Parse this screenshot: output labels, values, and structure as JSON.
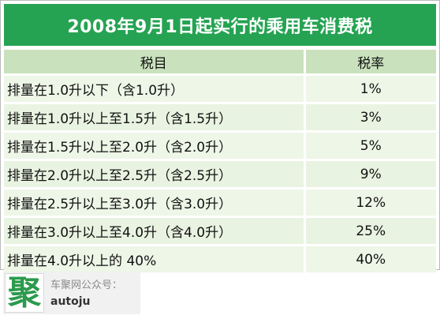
{
  "title": "2008年9月1日起实行的乘用车消费税",
  "table": {
    "headers": [
      "税目",
      "税率"
    ],
    "rows": [
      {
        "item": "排量在1.0升以下（含1.0升）",
        "rate": "1%"
      },
      {
        "item": "排量在1.0升以上至1.5升（含1.5升）",
        "rate": "3%"
      },
      {
        "item": "排量在1.5升以上至2.0升（含2.0升）",
        "rate": "5%"
      },
      {
        "item": "排量在2.0升以上至2.5升（含2.5升）",
        "rate": "9%"
      },
      {
        "item": "排量在2.5升以上至3.0升（含3.0升）",
        "rate": "12%"
      },
      {
        "item": "排量在3.0升以上至4.0升（含4.0升）",
        "rate": "25%"
      },
      {
        "item": "排量在4.0升以上的 40%",
        "rate": "40%"
      }
    ]
  },
  "brand": {
    "logo_text": "聚",
    "label": "车聚网公众号：",
    "account": "autoju"
  },
  "colors": {
    "title_bg": "#25a352",
    "header_bg": "#c9e2bd",
    "row_bg": "#e9f3e1",
    "logo": "#2b9a4c"
  }
}
